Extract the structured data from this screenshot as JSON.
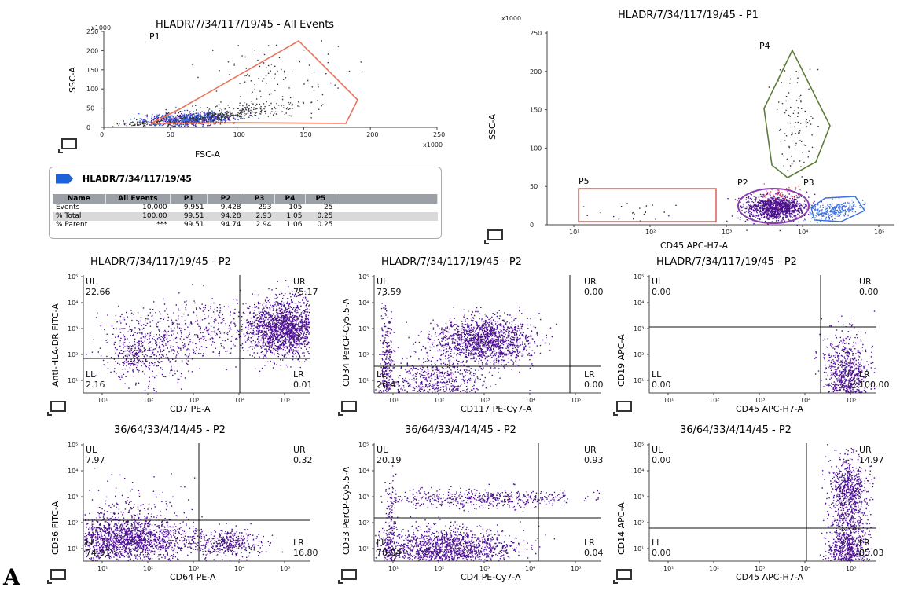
{
  "panel_letter": "A",
  "plots": {
    "p1": {
      "title": "HLADR/7/34/117/19/45 - All Events",
      "xlabel": "FSC-A",
      "ylabel": "SSC-A",
      "x_multiplier": "x1000",
      "y_multiplier": "x1000",
      "x_ticks": [
        "0",
        "50",
        "100",
        "150",
        "200",
        "250"
      ],
      "y_ticks": [
        "0",
        "50",
        "100",
        "150",
        "200",
        "250"
      ],
      "gate_label": "P1",
      "gate_color": "#e8735a"
    },
    "p2": {
      "title": "HLADR/7/34/117/19/45 - P1",
      "xlabel": "CD45 APC-H7-A",
      "ylabel": "SSC-A",
      "y_multiplier": "x1000",
      "y_ticks": [
        "0",
        "50",
        "100",
        "150",
        "200",
        "250"
      ],
      "x_ticks": [
        "10¹",
        "10²",
        "10³",
        "10⁴",
        "10⁵"
      ],
      "gates": [
        {
          "label": "P4",
          "color": "#5d7d3a"
        },
        {
          "label": "P5",
          "color": "#d9534f"
        },
        {
          "label": "P2",
          "color": "#8a3fb0"
        },
        {
          "label": "P3",
          "color": "#3a6fd8"
        }
      ]
    },
    "q1": {
      "title": "HLADR/7/34/117/19/45 - P2",
      "xlabel": "CD7 PE-A",
      "ylabel": "Anti-HLA-DR FITC-A",
      "UL": "22.66",
      "UR": "75.17",
      "LL": "2.16",
      "LR": "0.01"
    },
    "q2": {
      "title": "HLADR/7/34/117/19/45 - P2",
      "xlabel": "CD117 PE-Cy7-A",
      "ylabel": "CD34 PerCP-Cy5.5-A",
      "UL": "73.59",
      "UR": "0.00",
      "LL": "26.41",
      "LR": "0.00"
    },
    "q3": {
      "title": "HLADR/7/34/117/19/45 - P2",
      "xlabel": "CD45 APC-H7-A",
      "ylabel": "CD19 APC-A",
      "UL": "0.00",
      "UR": "0.00",
      "LL": "0.00",
      "LR": "100.00"
    },
    "q4": {
      "title": "36/64/33/4/14/45 - P2",
      "xlabel": "CD64 PE-A",
      "ylabel": "CD36 FITC-A",
      "UL": "7.97",
      "UR": "0.32",
      "LL": "74.91",
      "LR": "16.80"
    },
    "q5": {
      "title": "36/64/33/4/14/45 - P2",
      "xlabel": "CD4 PE-Cy7-A",
      "ylabel": "CD33 PerCP-Cy5.5-A",
      "UL": "20.19",
      "UR": "0.93",
      "LL": "78.84",
      "LR": "0.04"
    },
    "q6": {
      "title": "36/64/33/4/14/45 - P2",
      "xlabel": "CD45 APC-H7-A",
      "ylabel": "CD14 APC-A",
      "UL": "0.00",
      "UR": "14.97",
      "LL": "0.00",
      "LR": "85.03"
    }
  },
  "quad_labels": {
    "ul": "UL",
    "ur": "UR",
    "ll": "LL",
    "lr": "LR"
  },
  "log_ticks_x": [
    "10¹",
    "10²",
    "10³",
    "10⁴",
    "10⁵"
  ],
  "log_ticks_y": [
    "10¹",
    "10²",
    "10³",
    "10⁴",
    "10⁵"
  ],
  "stats": {
    "title": "HLADR/7/34/117/19/45",
    "columns": [
      "Name",
      "All Events",
      "P1",
      "P2",
      "P3",
      "P4",
      "P5"
    ],
    "rows": [
      [
        "Events",
        "10,000",
        "9,951",
        "9,428",
        "293",
        "105",
        "25"
      ],
      [
        "% Total",
        "100.00",
        "99.51",
        "94.28",
        "2.93",
        "1.05",
        "0.25"
      ],
      [
        "% Parent",
        "***",
        "99.51",
        "94.74",
        "2.94",
        "1.06",
        "0.25"
      ]
    ],
    "accent": "#1e63d6"
  },
  "colors": {
    "events": "#4b0f8f",
    "events_blue": "#3b6ee0"
  }
}
